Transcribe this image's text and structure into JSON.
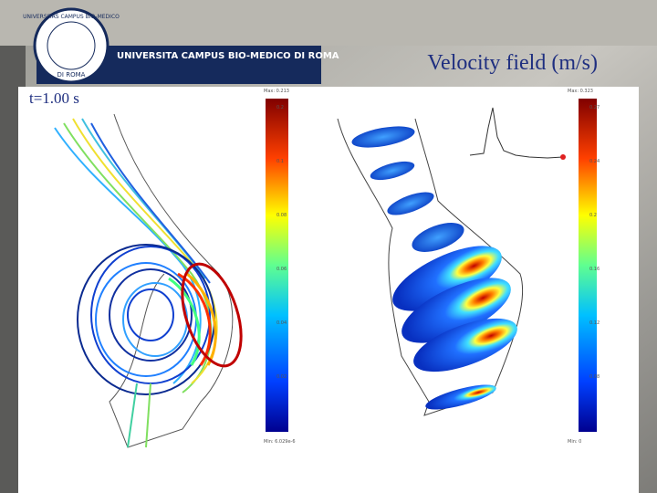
{
  "header": {
    "university": "UNIVERSITA CAMPUS BIO-MEDICO DI ROMA",
    "logo_ring": "UNIVERSITAS CAMPUS BIO-MEDICO",
    "logo_bottom": "DI ROMA"
  },
  "slide": {
    "title": "Velocity field (m/s)",
    "time_label": "t=1.00 s"
  },
  "left_colorbar": {
    "max_label": "Max: 0.213",
    "ticks": [
      "0.2",
      "0.1",
      "0.08",
      "0.06",
      "0.04",
      "0.02"
    ],
    "min_label": "Min: 6.029e-6"
  },
  "right_colorbar": {
    "max_label": "Max: 0.323",
    "ticks": [
      "0.27",
      "0.24",
      "0.2",
      "0.16",
      "0.12",
      "0.08"
    ],
    "min_label": "Min: 0"
  }
}
